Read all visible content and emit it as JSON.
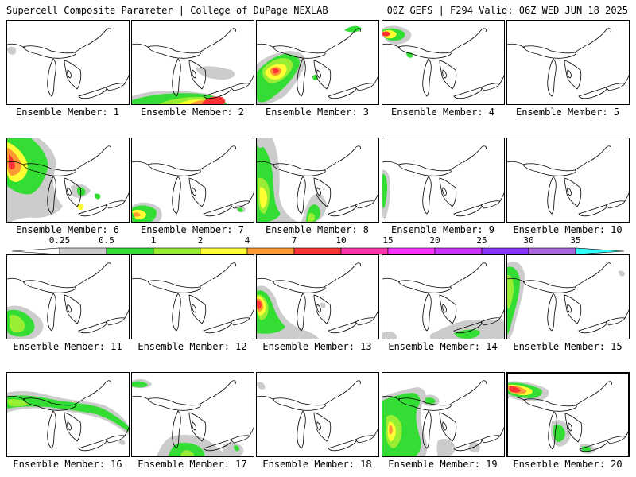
{
  "header": {
    "left": "Supercell Composite Parameter | College of DuPage NEXLAB",
    "right": "00Z GEFS | F294 Valid: 06Z WED JUN 18 2025"
  },
  "colorbar": {
    "labels": [
      "0.25",
      "0.5",
      "1",
      "2",
      "4",
      "7",
      "10",
      "15",
      "20",
      "25",
      "30",
      "35"
    ],
    "colors": [
      "#cccccc",
      "#33dd33",
      "#99ee33",
      "#ffff33",
      "#ff9933",
      "#ff3333",
      "#ff33aa",
      "#ff33ff",
      "#cc33ff",
      "#8833ff",
      "#aa66dd",
      "#33ffff"
    ]
  },
  "panels": [
    {
      "caption": "Ensemble Member: 1"
    },
    {
      "caption": "Ensemble Member: 2"
    },
    {
      "caption": "Ensemble Member: 3"
    },
    {
      "caption": "Ensemble Member: 4"
    },
    {
      "caption": "Ensemble Member: 5"
    },
    {
      "caption": "Ensemble Member: 6"
    },
    {
      "caption": "Ensemble Member: 7"
    },
    {
      "caption": "Ensemble Member: 8"
    },
    {
      "caption": "Ensemble Member: 9"
    },
    {
      "caption": "Ensemble Member: 10"
    },
    {
      "caption": "Ensemble Member: 11"
    },
    {
      "caption": "Ensemble Member: 12"
    },
    {
      "caption": "Ensemble Member: 13"
    },
    {
      "caption": "Ensemble Member: 14"
    },
    {
      "caption": "Ensemble Member: 15"
    },
    {
      "caption": "Ensemble Member: 16"
    },
    {
      "caption": "Ensemble Member: 17"
    },
    {
      "caption": "Ensemble Member: 18"
    },
    {
      "caption": "Ensemble Member: 19"
    },
    {
      "caption": "Ensemble Member: 20"
    }
  ]
}
